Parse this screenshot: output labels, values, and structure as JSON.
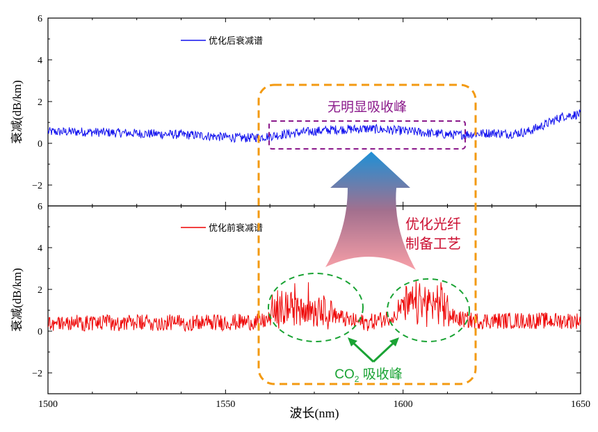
{
  "chart_data": [
    {
      "type": "line",
      "panel": "top",
      "xlim": [
        1500,
        1650
      ],
      "ylim": [
        -3,
        6
      ],
      "yticks": [
        -2,
        0,
        2,
        4,
        6
      ],
      "ytick_labels": [
        "−2",
        "0",
        "2",
        "4",
        "6"
      ],
      "ylabel": "衰减(dB/km)",
      "color": "#1010ee",
      "legend_label": "优化后衰减谱",
      "legend_position": "top-left",
      "grid": false,
      "series": [
        {
          "name": "优化后衰减谱",
          "x": [
            1500,
            1510,
            1520,
            1530,
            1540,
            1550,
            1555,
            1560,
            1570,
            1580,
            1590,
            1600,
            1610,
            1615,
            1620,
            1625,
            1630,
            1635,
            1640,
            1645,
            1650
          ],
          "y": [
            0.55,
            0.55,
            0.5,
            0.45,
            0.4,
            0.3,
            0.25,
            0.3,
            0.5,
            0.65,
            0.7,
            0.6,
            0.45,
            0.4,
            0.45,
            0.5,
            0.45,
            0.55,
            0.9,
            1.3,
            1.4
          ]
        }
      ]
    },
    {
      "type": "line",
      "panel": "bottom",
      "xlim": [
        1500,
        1650
      ],
      "ylim": [
        -3,
        6
      ],
      "yticks": [
        -2,
        0,
        2,
        4,
        6
      ],
      "ytick_labels": [
        "−2",
        "0",
        "2",
        "4",
        "6"
      ],
      "ylabel": "衰减(dB/km)",
      "xlabel": "波长(nm)",
      "xticks": [
        1500,
        1550,
        1600,
        1650
      ],
      "color": "#ee0000",
      "legend_label": "优化前衰减谱",
      "legend_position": "top-left",
      "grid": false,
      "series": [
        {
          "name": "优化前衰减谱",
          "x": [
            1500,
            1520,
            1540,
            1560,
            1565,
            1570,
            1575,
            1580,
            1585,
            1590,
            1595,
            1600,
            1605,
            1610,
            1615,
            1620,
            1640,
            1650
          ],
          "y": [
            0.4,
            0.4,
            0.4,
            0.45,
            0.7,
            1.0,
            0.9,
            0.8,
            0.5,
            0.4,
            0.6,
            0.9,
            1.1,
            1.0,
            0.6,
            0.5,
            0.5,
            0.5
          ]
        }
      ]
    }
  ],
  "annotations": {
    "no_peak": "无明显吸收峰",
    "process_line1": "优化光纤",
    "process_line2": "制备工艺",
    "co2_prefix": "CO",
    "co2_sub": "2",
    "co2_suffix": " 吸收峰"
  },
  "colors": {
    "orange_box": "#f39a12",
    "purple_box": "#8b1a8b",
    "green": "#1aa334",
    "process_text": "#cc1133",
    "arrow_top": "#1e90d6",
    "arrow_bottom": "#f8a0a8"
  }
}
